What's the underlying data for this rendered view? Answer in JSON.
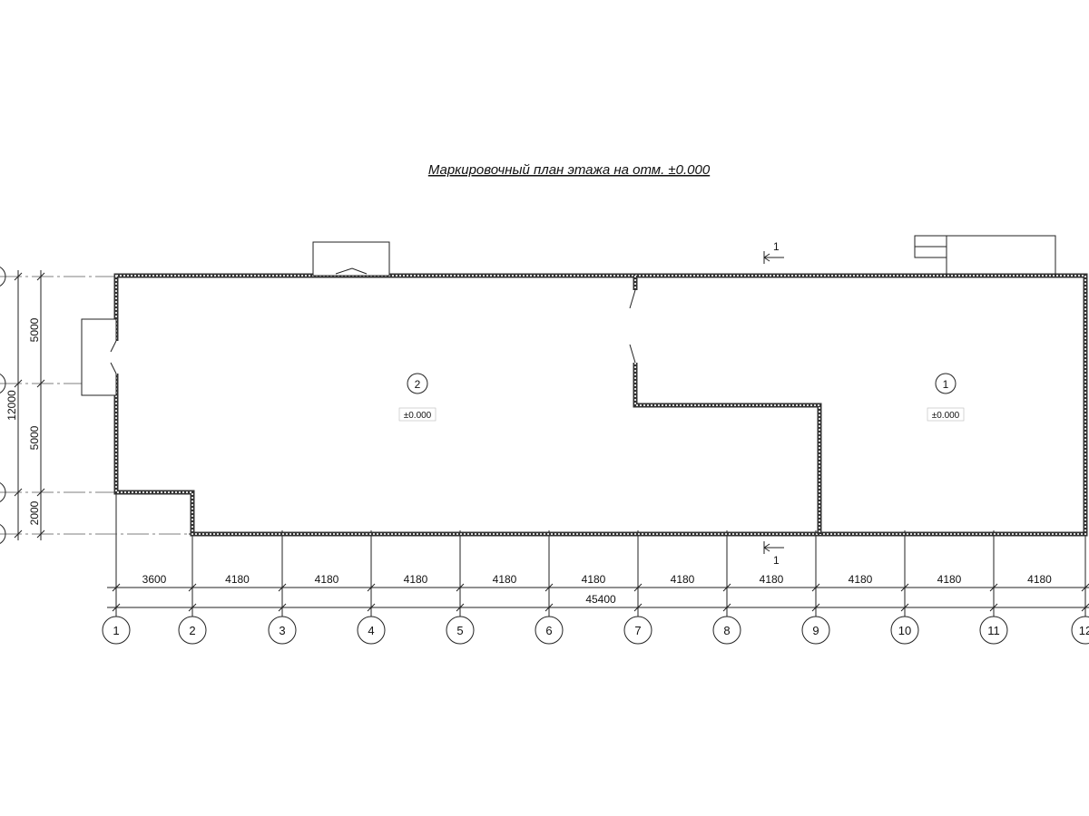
{
  "title": "Маркировочный план этажа на отм. ±0.000",
  "rooms": [
    {
      "number": "2",
      "elevation": "±0.000"
    },
    {
      "number": "1",
      "elevation": "±0.000"
    }
  ],
  "section_mark": "1",
  "axes_horizontal": [
    "1",
    "2",
    "3",
    "4",
    "5",
    "6",
    "7",
    "8",
    "9",
    "10",
    "11",
    "12"
  ],
  "dimensions_horizontal": [
    "3600",
    "4180",
    "4180",
    "4180",
    "4180",
    "4180",
    "4180",
    "4180",
    "4180",
    "4180",
    "4180"
  ],
  "dimension_total_horizontal": "45400",
  "dimensions_vertical": [
    "5000",
    "5000",
    "2000"
  ],
  "dimension_total_vertical": "12000"
}
